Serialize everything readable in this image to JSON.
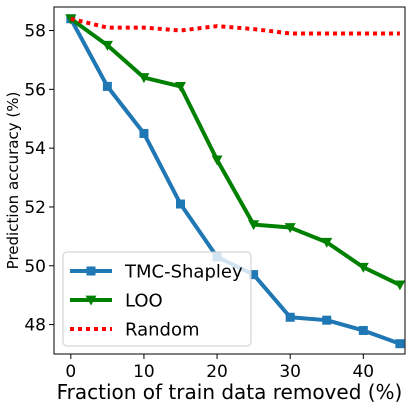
{
  "chart_data": {
    "type": "line",
    "title": "",
    "xlabel": "Fraction of train data removed (%)",
    "ylabel": "Prediction accuracy (%)",
    "xlim": [
      -2.3,
      45.7
    ],
    "ylim": [
      47.0,
      58.8
    ],
    "xticks": [
      0,
      10,
      20,
      30,
      40
    ],
    "yticks": [
      48,
      50,
      52,
      54,
      56,
      58
    ],
    "grid": false,
    "legend_position": "lower-left",
    "series": [
      {
        "name": "TMC-Shapley",
        "color": "#1f77b4",
        "marker": "square",
        "linestyle": "solid",
        "x": [
          0,
          5,
          10,
          15,
          20,
          25,
          30,
          35,
          40,
          45
        ],
        "values": [
          58.4,
          56.1,
          54.5,
          52.1,
          50.3,
          49.7,
          48.25,
          48.15,
          47.8,
          47.35
        ]
      },
      {
        "name": "LOO",
        "color": "#008000",
        "marker": "triangle-down",
        "linestyle": "solid",
        "x": [
          0,
          5,
          10,
          15,
          20,
          25,
          30,
          35,
          40,
          45
        ],
        "values": [
          58.4,
          57.5,
          56.4,
          56.1,
          53.6,
          51.4,
          51.3,
          50.8,
          49.95,
          49.35
        ]
      },
      {
        "name": "Random",
        "color": "#ff0000",
        "marker": "none",
        "linestyle": "dotted",
        "x": [
          0,
          5,
          10,
          15,
          20,
          25,
          30,
          35,
          40,
          45
        ],
        "values": [
          58.4,
          58.1,
          58.1,
          58.0,
          58.15,
          58.05,
          57.9,
          57.9,
          57.9,
          57.9
        ]
      }
    ]
  }
}
